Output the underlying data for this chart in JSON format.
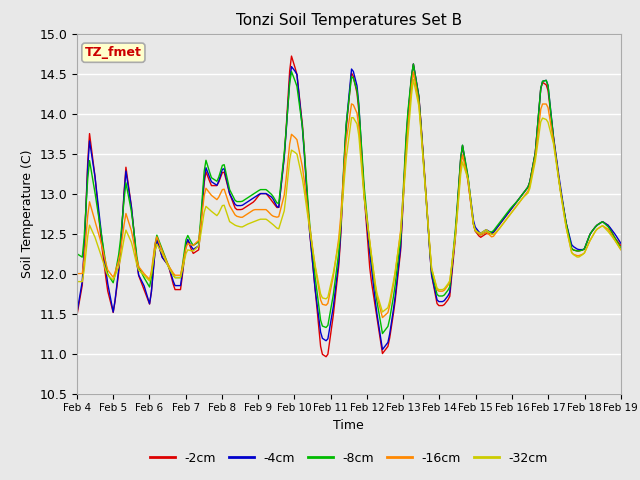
{
  "title": "Tonzi Soil Temperatures Set B",
  "xlabel": "Time",
  "ylabel": "Soil Temperature (C)",
  "ylim": [
    10.5,
    15.0
  ],
  "yticks": [
    10.5,
    11.0,
    11.5,
    12.0,
    12.5,
    13.0,
    13.5,
    14.0,
    14.5,
    15.0
  ],
  "annotation_text": "TZ_fmet",
  "annotation_bg": "#ffffcc",
  "annotation_border": "#aaaaaa",
  "series_labels": [
    "-2cm",
    "-4cm",
    "-8cm",
    "-16cm",
    "-32cm"
  ],
  "series_colors": [
    "#dd0000",
    "#0000cc",
    "#00bb00",
    "#ff8800",
    "#cccc00"
  ],
  "fig_bg": "#e8e8e8",
  "plot_bg": "#e8e8e8",
  "grid_color": "#ffffff",
  "xtick_labels": [
    "Feb 4",
    "Feb 5",
    "Feb 6",
    "Feb 7",
    "Feb 8",
    "Feb 9",
    "Feb 10",
    "Feb 11",
    "Feb 12",
    "Feb 13",
    "Feb 14",
    "Feb 15",
    "Feb 16",
    "Feb 17",
    "Feb 18",
    "Feb 19"
  ],
  "series_data": {
    "neg2cm": [
      11.47,
      11.9,
      13.8,
      13.2,
      12.4,
      11.8,
      11.5,
      12.1,
      13.35,
      12.8,
      12.0,
      11.8,
      11.6,
      12.45,
      12.2,
      12.1,
      11.8,
      11.8,
      12.45,
      12.25,
      12.3,
      13.3,
      13.1,
      13.1,
      13.3,
      13.0,
      12.8,
      12.8,
      12.85,
      12.9,
      13.0,
      13.0,
      12.9,
      12.8,
      13.5,
      14.75,
      14.5,
      13.8,
      12.6,
      11.8,
      11.0,
      10.95,
      11.5,
      12.2,
      13.75,
      14.55,
      14.2,
      13.0,
      12.0,
      11.5,
      11.0,
      11.1,
      11.6,
      12.3,
      13.8,
      14.65,
      14.2,
      13.15,
      12.0,
      11.6,
      11.6,
      11.7,
      12.5,
      13.65,
      13.15,
      12.55,
      12.45,
      12.5,
      12.5,
      12.6,
      12.7,
      12.8,
      12.9,
      13.0,
      13.1,
      13.5,
      14.4,
      14.35,
      13.7,
      13.1,
      12.65,
      12.3,
      12.28,
      12.3,
      12.5,
      12.6,
      12.65,
      12.6,
      12.45,
      12.35
    ],
    "neg4cm": [
      11.5,
      11.95,
      13.7,
      13.2,
      12.5,
      11.9,
      11.5,
      12.15,
      13.3,
      12.8,
      12.0,
      11.85,
      11.6,
      12.45,
      12.2,
      12.1,
      11.85,
      11.85,
      12.45,
      12.3,
      12.35,
      13.35,
      13.15,
      13.1,
      13.35,
      13.0,
      12.85,
      12.85,
      12.9,
      12.95,
      13.0,
      13.0,
      12.95,
      12.8,
      13.5,
      14.6,
      14.5,
      13.75,
      12.6,
      11.8,
      11.2,
      11.15,
      11.6,
      12.25,
      13.8,
      14.6,
      14.3,
      13.0,
      12.2,
      11.55,
      11.05,
      11.15,
      11.65,
      12.35,
      13.85,
      14.65,
      14.2,
      13.1,
      12.0,
      11.65,
      11.65,
      11.75,
      12.55,
      13.65,
      13.2,
      12.6,
      12.5,
      12.55,
      12.5,
      12.6,
      12.7,
      12.8,
      12.9,
      13.0,
      13.1,
      13.5,
      14.4,
      14.42,
      13.7,
      13.15,
      12.65,
      12.35,
      12.3,
      12.3,
      12.5,
      12.6,
      12.65,
      12.6,
      12.5,
      12.38
    ],
    "neg8cm": [
      12.25,
      12.2,
      13.45,
      13.0,
      12.5,
      12.0,
      11.88,
      12.3,
      13.15,
      12.75,
      12.1,
      11.95,
      11.82,
      12.5,
      12.3,
      12.1,
      11.95,
      11.95,
      12.5,
      12.35,
      12.4,
      13.45,
      13.2,
      13.15,
      13.4,
      13.05,
      12.9,
      12.9,
      12.95,
      13.0,
      13.05,
      13.05,
      12.98,
      12.85,
      13.55,
      14.55,
      14.35,
      13.78,
      12.7,
      11.95,
      11.35,
      11.32,
      11.75,
      12.35,
      13.82,
      14.5,
      14.25,
      13.1,
      12.3,
      11.7,
      11.25,
      11.35,
      11.8,
      12.45,
      13.9,
      14.65,
      14.18,
      13.1,
      12.05,
      11.72,
      11.72,
      11.82,
      12.6,
      13.65,
      13.22,
      12.55,
      12.48,
      12.52,
      12.52,
      12.62,
      12.72,
      12.82,
      12.9,
      13.0,
      13.1,
      13.5,
      14.4,
      14.42,
      13.68,
      13.1,
      12.65,
      12.3,
      12.28,
      12.3,
      12.5,
      12.6,
      12.65,
      12.58,
      12.45,
      12.32
    ],
    "neg16cm": [
      12.0,
      12.0,
      12.92,
      12.65,
      12.38,
      12.05,
      11.95,
      12.2,
      12.76,
      12.52,
      12.1,
      12.0,
      11.92,
      12.48,
      12.28,
      12.1,
      11.98,
      11.98,
      12.38,
      12.35,
      12.42,
      13.08,
      12.98,
      12.92,
      13.08,
      12.85,
      12.72,
      12.7,
      12.75,
      12.8,
      12.8,
      12.8,
      12.72,
      12.7,
      13.0,
      13.75,
      13.68,
      13.3,
      12.65,
      12.08,
      11.62,
      11.6,
      11.98,
      12.52,
      13.62,
      14.15,
      13.98,
      12.98,
      12.35,
      11.75,
      11.45,
      11.52,
      11.95,
      12.55,
      13.68,
      14.55,
      14.12,
      13.1,
      12.08,
      11.78,
      11.78,
      11.88,
      12.52,
      13.52,
      13.18,
      12.55,
      12.48,
      12.52,
      12.45,
      12.55,
      12.65,
      12.75,
      12.85,
      12.95,
      13.05,
      13.45,
      14.12,
      14.12,
      13.65,
      13.1,
      12.6,
      12.25,
      12.22,
      12.25,
      12.42,
      12.55,
      12.6,
      12.55,
      12.42,
      12.3
    ],
    "neg32cm": [
      11.9,
      11.9,
      12.62,
      12.45,
      12.22,
      11.98,
      11.92,
      12.12,
      12.55,
      12.38,
      12.05,
      11.98,
      11.9,
      12.38,
      12.25,
      12.08,
      11.95,
      11.95,
      12.3,
      12.28,
      12.35,
      12.85,
      12.78,
      12.72,
      12.88,
      12.65,
      12.6,
      12.58,
      12.62,
      12.65,
      12.68,
      12.68,
      12.62,
      12.55,
      12.8,
      13.55,
      13.5,
      13.15,
      12.6,
      12.1,
      11.7,
      11.68,
      12.02,
      12.45,
      13.4,
      13.98,
      13.85,
      12.95,
      12.35,
      11.78,
      11.52,
      11.58,
      11.98,
      12.52,
      13.55,
      14.45,
      14.08,
      13.08,
      12.08,
      11.8,
      11.8,
      11.9,
      12.5,
      13.42,
      13.18,
      12.55,
      12.5,
      12.55,
      12.48,
      12.55,
      12.65,
      12.75,
      12.85,
      12.95,
      13.02,
      13.4,
      13.95,
      13.92,
      13.62,
      13.08,
      12.6,
      12.25,
      12.2,
      12.25,
      12.42,
      12.55,
      12.6,
      12.52,
      12.42,
      12.3
    ]
  }
}
